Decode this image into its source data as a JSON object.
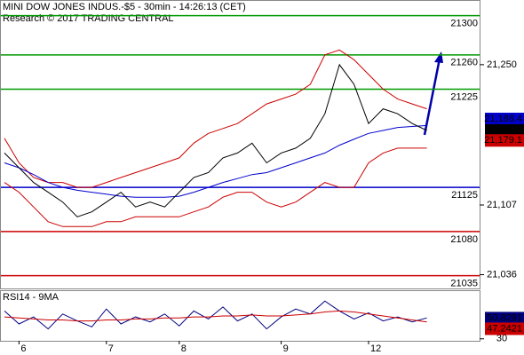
{
  "chart_data": [
    {
      "type": "line",
      "title": "MINI DOW JONES INDUS.-$5 - 30min - 14:26:13 (CET)",
      "subtitle": "Research © 2017 TRADING CENTRAL",
      "categories": [
        null,
        "6",
        null,
        null,
        null,
        null,
        null,
        "7",
        null,
        null,
        null,
        null,
        "8",
        null,
        null,
        null,
        null,
        null,
        null,
        "9",
        null,
        null,
        null,
        null,
        null,
        "12",
        null,
        null,
        null,
        null
      ],
      "series": [
        {
          "name": "Upper band",
          "color": "#cc0000",
          "values": [
            21175,
            21150,
            21135,
            21130,
            21130,
            21125,
            21125,
            21130,
            21135,
            21140,
            21145,
            21150,
            21155,
            21170,
            21180,
            21185,
            21190,
            21200,
            21210,
            21215,
            21220,
            21230,
            21260,
            21265,
            21255,
            21240,
            21225,
            21215,
            21210,
            21205
          ]
        },
        {
          "name": "Lower band",
          "color": "#cc0000",
          "values": [
            21130,
            21120,
            21105,
            21090,
            21085,
            21085,
            21085,
            21090,
            21090,
            21095,
            21095,
            21095,
            21095,
            21100,
            21105,
            21115,
            21120,
            21120,
            21110,
            21105,
            21110,
            21120,
            21130,
            21125,
            21125,
            21150,
            21160,
            21165,
            21165,
            21165
          ]
        },
        {
          "name": "Moving average",
          "color": "#0000cc",
          "values": [
            21150,
            21145,
            21138,
            21130,
            21125,
            21122,
            21120,
            21118,
            21116,
            21115,
            21115,
            21115,
            21116,
            21120,
            21125,
            21130,
            21134,
            21138,
            21140,
            21145,
            21150,
            21155,
            21160,
            21168,
            21174,
            21180,
            21183,
            21186,
            21187,
            21188
          ]
        },
        {
          "name": "Price",
          "color": "#000000",
          "values": [
            21160,
            21145,
            21130,
            21120,
            21110,
            21095,
            21100,
            21110,
            21120,
            21105,
            21110,
            21105,
            21120,
            21135,
            21140,
            21155,
            21160,
            21170,
            21150,
            21160,
            21165,
            21175,
            21200,
            21250,
            21230,
            21190,
            21205,
            21200,
            21190,
            21183
          ]
        }
      ],
      "levels": [
        {
          "value": 21300,
          "color": "#009900"
        },
        {
          "value": 21260,
          "color": "#009900"
        },
        {
          "value": 21225,
          "color": "#009900"
        },
        {
          "value": 21125,
          "color": "#0000cc"
        },
        {
          "value": 21080,
          "color": "#cc0000"
        },
        {
          "value": 21035,
          "color": "#cc0000"
        }
      ],
      "ylim": [
        21022,
        21315
      ],
      "yticks": [
        {
          "value": 21250,
          "label": "21,250"
        },
        {
          "value": 21107,
          "label": "21,107"
        },
        {
          "value": 21036,
          "label": "21,036"
        }
      ],
      "last_values": [
        {
          "value": 21188.4,
          "label": "21,188.4",
          "color": "#0000cc"
        },
        {
          "value": 21183,
          "label": "21,183",
          "color": "#000000"
        },
        {
          "value": 21179.1,
          "label": "21,179.1",
          "color": "#cc0000"
        }
      ]
    },
    {
      "type": "line",
      "title": "RSI14 - 9MA",
      "series": [
        {
          "name": "RSI",
          "color": "#000080",
          "values": [
            58,
            45,
            52,
            40,
            55,
            48,
            42,
            60,
            45,
            52,
            47,
            55,
            43,
            58,
            50,
            62,
            48,
            55,
            40,
            52,
            60,
            55,
            68,
            58,
            50,
            56,
            48,
            52,
            47,
            51
          ]
        },
        {
          "name": "MA",
          "color": "#cc0000",
          "values": [
            52,
            51,
            50,
            49,
            49,
            48,
            48,
            49,
            49,
            50,
            50,
            51,
            51,
            52,
            52,
            53,
            53,
            54,
            53,
            53,
            54,
            55,
            57,
            58,
            57,
            55,
            53,
            51,
            49,
            47
          ]
        }
      ],
      "ylim": [
        28,
        78
      ],
      "yticks": [
        30
      ],
      "last_values": [
        {
          "value": 50.8291,
          "label": "50.8291",
          "color": "#000080"
        },
        {
          "value": 47.2421,
          "label": "47.2421",
          "color": "#cc0000"
        }
      ]
    }
  ]
}
